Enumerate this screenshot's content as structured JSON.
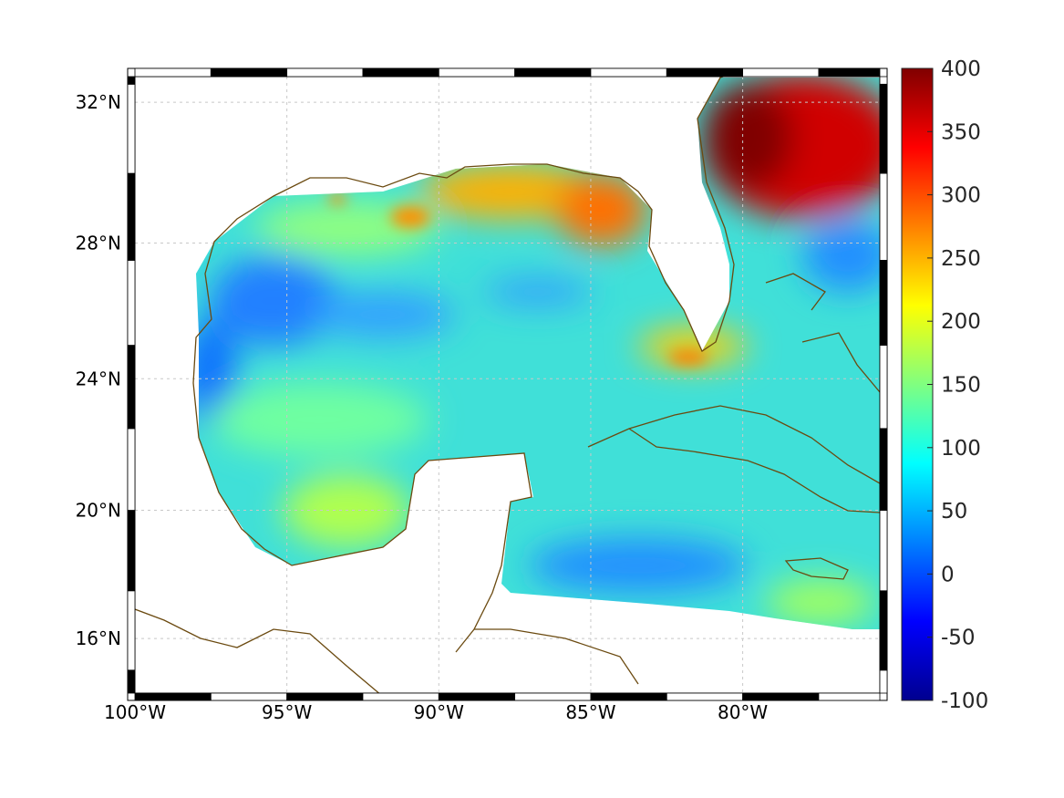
{
  "map": {
    "projection": "mercator",
    "lon_range": [
      -100,
      -75.5
    ],
    "lat_range": [
      14.3,
      32.7
    ],
    "lon_ticks": [
      {
        "value": -100,
        "label": "100°W"
      },
      {
        "value": -95,
        "label": "95°W"
      },
      {
        "value": -90,
        "label": "90°W"
      },
      {
        "value": -85,
        "label": "85°W"
      },
      {
        "value": -80,
        "label": "80°W"
      }
    ],
    "lat_ticks": [
      {
        "value": 32,
        "label": "32°N"
      },
      {
        "value": 28,
        "label": "28°N"
      },
      {
        "value": 24,
        "label": "24°N"
      },
      {
        "value": 20,
        "label": "20°N"
      },
      {
        "value": 16,
        "label": "16°N"
      }
    ],
    "coast_color": "#6b4a10",
    "grid_color": "#c8c8c8"
  },
  "colorbar": {
    "range": [
      -100,
      400
    ],
    "ticks": [
      "400",
      "350",
      "300",
      "250",
      "200",
      "150",
      "100",
      "50",
      "0",
      "-50",
      "-100"
    ],
    "colormap": [
      "#00008f",
      "#0000ff",
      "#0080ff",
      "#00ffff",
      "#80ff80",
      "#ffff00",
      "#ff8000",
      "#ff0000",
      "#800000"
    ]
  }
}
